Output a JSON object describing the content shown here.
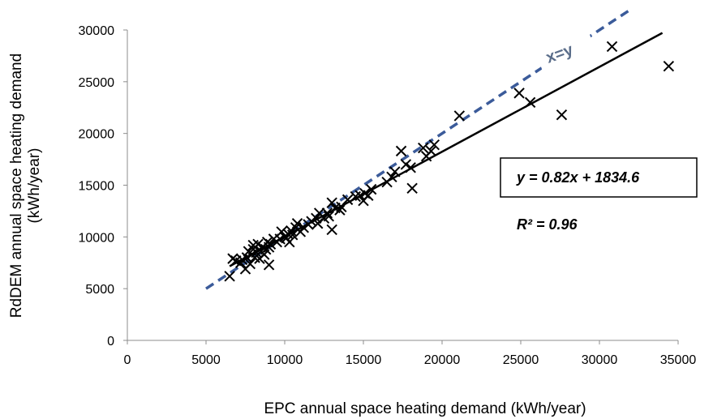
{
  "chart_data": {
    "type": "scatter",
    "xlabel": "EPC annual space heating demand (kWh/year)",
    "ylabel_line1": "RdDEM annual space heating demand",
    "ylabel_line2": "(kWh/year)",
    "xlim": [
      0,
      35000
    ],
    "ylim": [
      0,
      30000
    ],
    "x_ticks": [
      0,
      5000,
      10000,
      15000,
      20000,
      25000,
      30000,
      35000
    ],
    "y_ticks": [
      0,
      5000,
      10000,
      15000,
      20000,
      25000,
      30000
    ],
    "grid": false,
    "marker": "x",
    "points": [
      [
        6500,
        6200
      ],
      [
        6700,
        7900
      ],
      [
        6900,
        7700
      ],
      [
        7200,
        7500
      ],
      [
        7300,
        7800
      ],
      [
        7500,
        6900
      ],
      [
        7600,
        8000
      ],
      [
        7700,
        8600
      ],
      [
        7800,
        7400
      ],
      [
        7900,
        8300
      ],
      [
        8000,
        8800
      ],
      [
        8000,
        9200
      ],
      [
        8100,
        8000
      ],
      [
        8200,
        8500
      ],
      [
        8300,
        9300
      ],
      [
        8400,
        7900
      ],
      [
        8500,
        8600
      ],
      [
        8600,
        9000
      ],
      [
        8700,
        8300
      ],
      [
        8800,
        8800
      ],
      [
        8900,
        9500
      ],
      [
        9000,
        7300
      ],
      [
        9000,
        9000
      ],
      [
        9100,
        9300
      ],
      [
        9300,
        9800
      ],
      [
        9500,
        9500
      ],
      [
        9700,
        9800
      ],
      [
        9800,
        10500
      ],
      [
        10000,
        10000
      ],
      [
        10100,
        9900
      ],
      [
        10200,
        10300
      ],
      [
        10300,
        9500
      ],
      [
        10400,
        10600
      ],
      [
        10500,
        10200
      ],
      [
        10700,
        10900
      ],
      [
        10800,
        11300
      ],
      [
        11000,
        10500
      ],
      [
        11200,
        10900
      ],
      [
        11500,
        11200
      ],
      [
        11700,
        11500
      ],
      [
        12000,
        11800
      ],
      [
        12100,
        11300
      ],
      [
        12200,
        12300
      ],
      [
        12500,
        11800
      ],
      [
        12700,
        12300
      ],
      [
        12800,
        12000
      ],
      [
        13000,
        10700
      ],
      [
        13000,
        13300
      ],
      [
        13200,
        12800
      ],
      [
        13500,
        12600
      ],
      [
        13600,
        12900
      ],
      [
        14000,
        13600
      ],
      [
        14500,
        13900
      ],
      [
        14800,
        14000
      ],
      [
        15000,
        13500
      ],
      [
        15100,
        14200
      ],
      [
        15300,
        14000
      ],
      [
        15500,
        14600
      ],
      [
        16500,
        15300
      ],
      [
        16800,
        15800
      ],
      [
        17000,
        16300
      ],
      [
        17400,
        18300
      ],
      [
        17700,
        17000
      ],
      [
        18000,
        16700
      ],
      [
        18100,
        14700
      ],
      [
        18800,
        18600
      ],
      [
        19000,
        17800
      ],
      [
        19300,
        18300
      ],
      [
        19500,
        18900
      ],
      [
        21100,
        21700
      ],
      [
        24900,
        23900
      ],
      [
        25600,
        23000
      ],
      [
        27600,
        21800
      ],
      [
        30800,
        28400
      ],
      [
        34400,
        26500
      ]
    ],
    "trendline": {
      "slope": 0.82,
      "intercept": 1834.6,
      "x_range": [
        6500,
        34000
      ]
    },
    "identity_line": {
      "label": "x=y",
      "x_range": [
        5000,
        32000
      ]
    },
    "equation_text": "y = 0.82x + 1834.6",
    "r2_text": "R² = 0.96",
    "colors": {
      "markers": "#000000",
      "trendline": "#000000",
      "identity": "#3b5b9a",
      "identity_label": "#5a6d8a"
    }
  }
}
